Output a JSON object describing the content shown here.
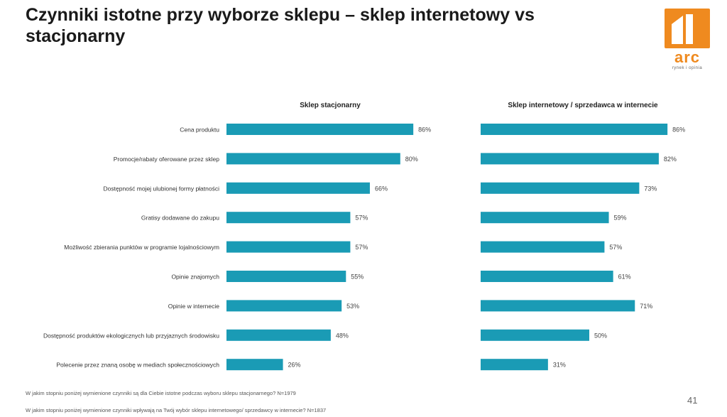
{
  "title": "Czynniki istotne przy wyborze sklepu – sklep internetowy vs stacjonarny",
  "logo": {
    "word": "arc",
    "sub": "rynek i opinia"
  },
  "colors": {
    "bar": "#1a9bb5",
    "accent": "#ef8a1f"
  },
  "chart_data": {
    "type": "bar",
    "orientation": "horizontal",
    "categories": [
      "Cena produktu",
      "Promocje/rabaty oferowane przez sklep",
      "Dostępność mojej ulubionej formy płatności",
      "Gratisy dodawane do zakupu",
      "Możliwość zbierania punktów w programie lojalnościowym",
      "Opinie znajomych",
      "Opinie w internecie",
      "Dostępność produktów ekologicznych lub przyjaznych środowisku",
      "Polecenie przez znaną osobę w mediach społecznościowych"
    ],
    "series": [
      {
        "name": "Sklep stacjonarny",
        "values": [
          86,
          80,
          66,
          57,
          57,
          55,
          53,
          48,
          26
        ]
      },
      {
        "name": "Sklep internetowy / sprzedawca w internecie",
        "values": [
          86,
          82,
          73,
          59,
          57,
          61,
          71,
          50,
          31
        ]
      }
    ],
    "value_suffix": "%",
    "xlim": [
      0,
      100
    ],
    "grid": false
  },
  "footnotes": [
    "W jakim stopniu poniżej wymienione czynniki są dla Ciebie istotne podczas wyboru sklepu stacjonarnego? N=1979",
    "W jakim stopniu poniżej wymienione czynniki wpływają na Twój wybór sklepu internetowego/ sprzedawcy w internecie? N=1837"
  ],
  "page_number": "41"
}
